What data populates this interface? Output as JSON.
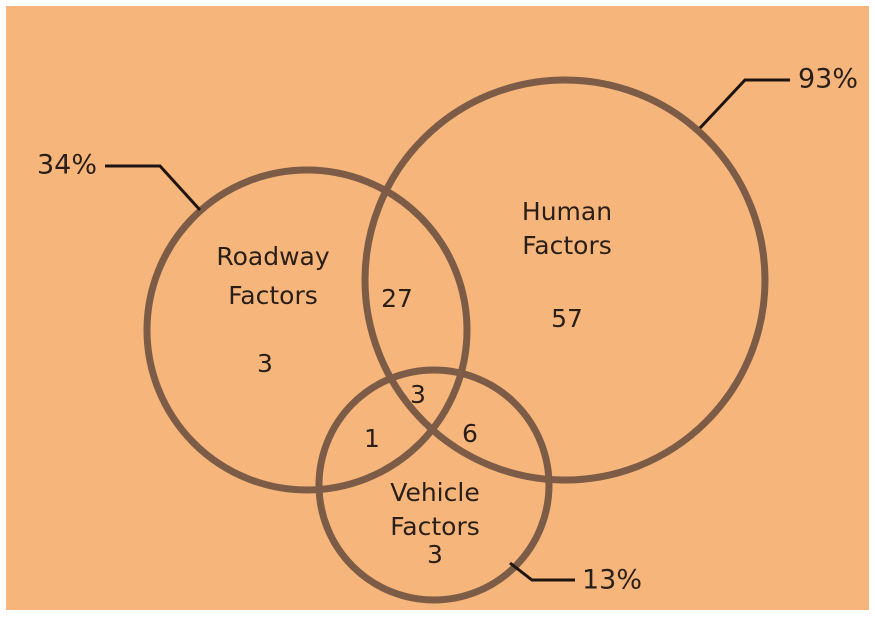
{
  "sets": [
    {
      "name_lines": [
        "Roadway",
        "Factors"
      ],
      "share": "34%"
    },
    {
      "name_lines": [
        "Human",
        "Factors"
      ],
      "share": "93%"
    },
    {
      "name_lines": [
        "Vehicle",
        "Factors"
      ],
      "share": "13%"
    }
  ],
  "regions": {
    "roadway_only": 3,
    "roadway_human": 27,
    "human_only": 57,
    "all_three": 3,
    "roadway_vehicle": 1,
    "human_vehicle": 6,
    "vehicle_only": 3
  }
}
